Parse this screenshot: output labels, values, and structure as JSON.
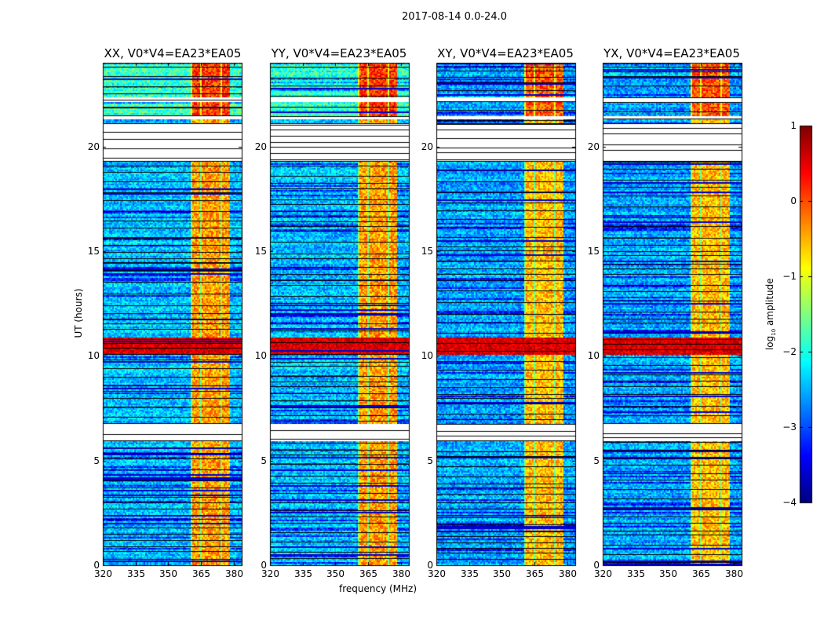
{
  "chart_data": {
    "type": "heatmap",
    "title": "2017-08-14 0.0-24.0",
    "xlabel": "frequency (MHz)",
    "ylabel": "UT (hours)",
    "xlim": [
      320,
      383.6
    ],
    "ylim": [
      0,
      24
    ],
    "xticks": [
      320,
      335,
      350,
      365,
      380
    ],
    "yticks": [
      0,
      5,
      10,
      15,
      20
    ],
    "panels": [
      {
        "title": "XX, V0*V4=EA23*EA05",
        "pol": "XX"
      },
      {
        "title": "YY, V0*V4=EA23*EA05",
        "pol": "YY"
      },
      {
        "title": "XY, V0*V4=EA23*EA05",
        "pol": "XY"
      },
      {
        "title": "YX, V0*V4=EA23*EA05",
        "pol": "YX"
      }
    ],
    "blank_ut_ranges": [
      [
        19.3,
        21.1
      ],
      [
        21.3,
        21.5
      ],
      [
        6.0,
        6.75
      ],
      [
        22.2,
        22.4
      ]
    ],
    "strong_band_mhz": [
      360,
      378
    ],
    "hot_ut_range": [
      10.1,
      10.9
    ],
    "colorbar": {
      "label": "log10 amplitude",
      "label_main": "log",
      "label_sub": "10",
      "label_rest": " amplitude",
      "colormap": "jet",
      "range": [
        -4,
        1
      ],
      "ticks": [
        "1",
        "0",
        "−1",
        "−2",
        "−3",
        "−4"
      ],
      "tick_values": [
        1,
        0,
        -1,
        -2,
        -3,
        -4
      ]
    }
  }
}
